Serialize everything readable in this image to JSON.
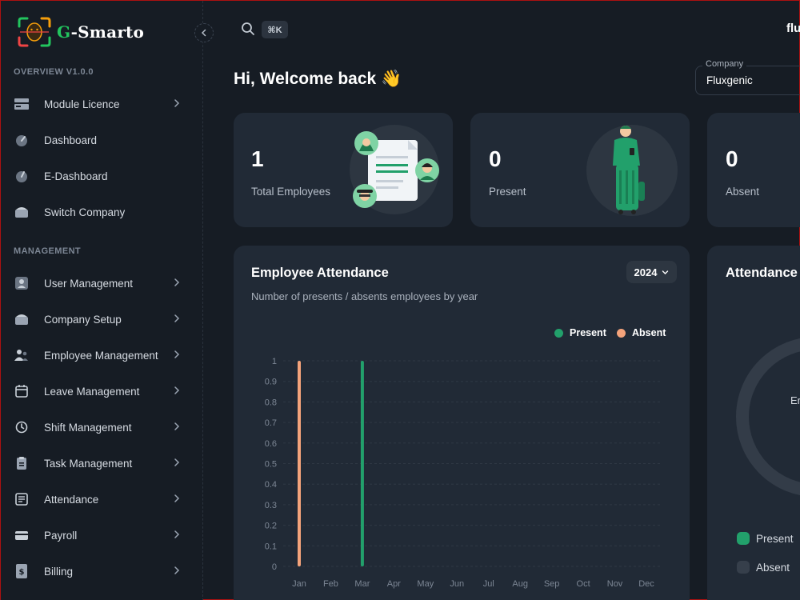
{
  "brand": {
    "name_first": "G",
    "name_rest": "-Smarto"
  },
  "sidebar": {
    "sections": [
      {
        "title": "OVERVIEW V1.0.0"
      },
      {
        "title": "MANAGEMENT"
      }
    ],
    "items": [
      {
        "label": "Module Licence",
        "icon": "licence-icon",
        "chevron": true
      },
      {
        "label": "Dashboard",
        "icon": "dashboard-icon",
        "chevron": false
      },
      {
        "label": "E-Dashboard",
        "icon": "e-dashboard-icon",
        "chevron": false
      },
      {
        "label": "Switch Company",
        "icon": "switch-company-icon",
        "chevron": false
      },
      {
        "label": "User Management",
        "icon": "user-icon",
        "chevron": true
      },
      {
        "label": "Company Setup",
        "icon": "company-icon",
        "chevron": true
      },
      {
        "label": "Employee Management",
        "icon": "employees-icon",
        "chevron": true
      },
      {
        "label": "Leave Management",
        "icon": "calendar-icon",
        "chevron": true
      },
      {
        "label": "Shift Management",
        "icon": "clock-icon",
        "chevron": true
      },
      {
        "label": "Task Management",
        "icon": "clipboard-icon",
        "chevron": true
      },
      {
        "label": "Attendance",
        "icon": "attendance-icon",
        "chevron": true
      },
      {
        "label": "Payroll",
        "icon": "card-icon",
        "chevron": true
      },
      {
        "label": "Billing",
        "icon": "billing-icon",
        "chevron": true
      }
    ]
  },
  "topbar": {
    "shortcut": "⌘K",
    "user_name": "flu"
  },
  "welcome": "Hi, Welcome back 👋",
  "company": {
    "legend": "Company",
    "value": "Fluxgenic"
  },
  "stats": [
    {
      "value": "1",
      "label": "Total Employees"
    },
    {
      "value": "0",
      "label": "Present"
    },
    {
      "value": "0",
      "label": "Absent"
    }
  ],
  "attendance_card": {
    "title": "Employee Attendance",
    "subtitle": "Number of presents / absents employees by year",
    "year": "2024"
  },
  "right_card": {
    "title": "Attendance",
    "center_text": "Er",
    "legend": [
      {
        "label": "Present",
        "color": "#22a06b"
      },
      {
        "label": "Absent",
        "color": "#363f4b"
      }
    ]
  },
  "colors": {
    "present": "#22a06b",
    "absent": "#f4a37b",
    "accent": "#22c55e"
  },
  "chart_data": {
    "type": "bar",
    "categories": [
      "Jan",
      "Feb",
      "Mar",
      "Apr",
      "May",
      "Jun",
      "Jul",
      "Aug",
      "Sep",
      "Oct",
      "Nov",
      "Dec"
    ],
    "series": [
      {
        "name": "Present",
        "values": [
          0,
          0,
          1,
          0,
          0,
          0,
          0,
          0,
          0,
          0,
          0,
          0
        ]
      },
      {
        "name": "Absent",
        "values": [
          1,
          0,
          0,
          0,
          0,
          0,
          0,
          0,
          0,
          0,
          0,
          0
        ]
      }
    ],
    "yticks": [
      "0",
      "0.1",
      "0.2",
      "0.3",
      "0.4",
      "0.5",
      "0.6",
      "0.7",
      "0.8",
      "0.9",
      "1"
    ],
    "ylim": [
      0,
      1
    ],
    "grid": true,
    "legend_position": "top-right"
  }
}
